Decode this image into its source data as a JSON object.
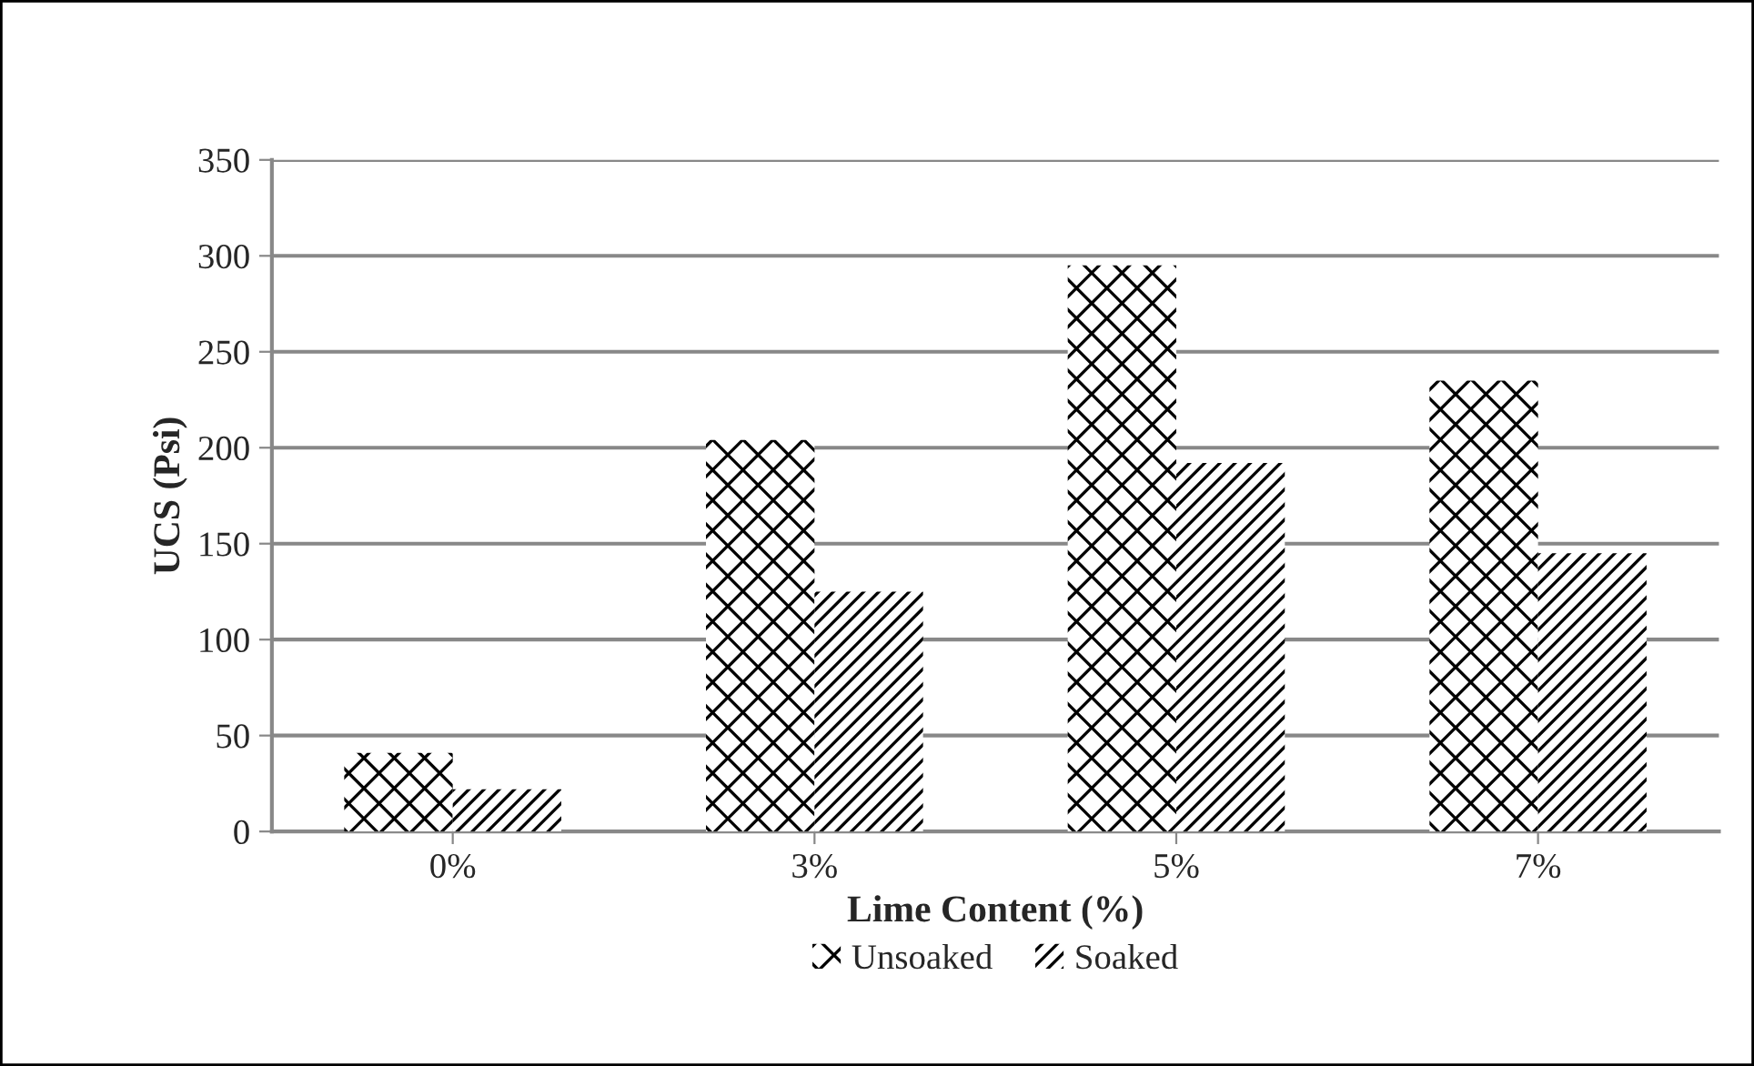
{
  "chart_data": {
    "type": "bar",
    "categories": [
      "0%",
      "3%",
      "5%",
      "7%"
    ],
    "series": [
      {
        "name": "Unsoaked",
        "color": "#000000",
        "values": [
          41,
          204,
          295,
          235
        ]
      },
      {
        "name": "Soaked",
        "color": "#000000",
        "values": [
          22,
          125,
          192,
          145
        ]
      }
    ],
    "xlabel": "Lime Content (%)",
    "ylabel": "UCS (Psi)",
    "ylim": [
      0,
      350
    ],
    "yticks": [
      0,
      50,
      100,
      150,
      200,
      250,
      300,
      350
    ],
    "grid": "y",
    "legend": "bottom"
  }
}
